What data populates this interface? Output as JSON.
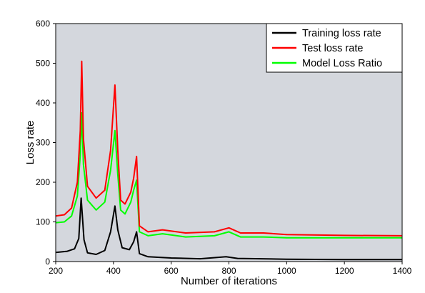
{
  "chart_data": {
    "type": "line",
    "title": "",
    "xlabel": "Number of iterations",
    "ylabel": "Loss rate",
    "xlim": [
      200,
      1400
    ],
    "ylim": [
      0,
      600
    ],
    "x_ticks": [
      200,
      400,
      600,
      800,
      1000,
      1200,
      1400
    ],
    "y_ticks": [
      0,
      100,
      200,
      300,
      400,
      500,
      600
    ],
    "grid": false,
    "legend_position": "top-right",
    "background_color": "#d4d7dd",
    "series": [
      {
        "name": "Training loss rate",
        "color": "#000000",
        "x": [
          200,
          240,
          265,
          280,
          288,
          298,
          310,
          340,
          370,
          390,
          405,
          415,
          430,
          455,
          470,
          480,
          490,
          520,
          600,
          700,
          790,
          830,
          1000,
          1200,
          1400
        ],
        "y": [
          23,
          26,
          32,
          58,
          160,
          55,
          22,
          18,
          28,
          75,
          140,
          80,
          35,
          30,
          50,
          75,
          20,
          12,
          9,
          7,
          12,
          8,
          6,
          5,
          5
        ]
      },
      {
        "name": "Test loss rate",
        "color": "#ff0000",
        "x": [
          200,
          230,
          255,
          275,
          285,
          290,
          296,
          310,
          340,
          370,
          390,
          405,
          415,
          425,
          440,
          460,
          470,
          480,
          490,
          520,
          570,
          650,
          750,
          800,
          840,
          920,
          1000,
          1200,
          1400
        ],
        "y": [
          115,
          118,
          135,
          200,
          330,
          505,
          310,
          190,
          160,
          180,
          280,
          445,
          280,
          155,
          145,
          175,
          210,
          265,
          90,
          75,
          80,
          72,
          75,
          85,
          72,
          72,
          68,
          66,
          65
        ]
      },
      {
        "name": "Model Loss Ratio",
        "color": "#00ff00",
        "x": [
          200,
          230,
          255,
          275,
          285,
          290,
          296,
          310,
          340,
          370,
          390,
          405,
          415,
          425,
          440,
          460,
          470,
          480,
          490,
          520,
          570,
          650,
          750,
          800,
          840,
          920,
          1000,
          1200,
          1400
        ],
        "y": [
          98,
          100,
          115,
          165,
          270,
          375,
          245,
          155,
          130,
          150,
          230,
          330,
          220,
          130,
          120,
          150,
          180,
          205,
          75,
          65,
          70,
          62,
          65,
          75,
          62,
          62,
          60,
          60,
          60
        ]
      }
    ]
  }
}
